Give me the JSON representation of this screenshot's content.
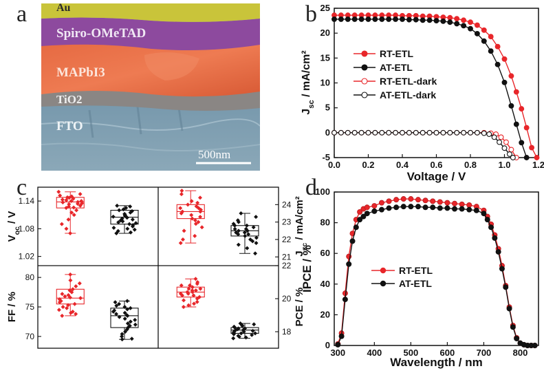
{
  "panels": {
    "a": "a",
    "b": "b",
    "c": "c",
    "d": "d"
  },
  "sem": {
    "layers": [
      "Au",
      "Spiro-OMeTAD",
      "MAPbI3",
      "TiO2",
      "FTO"
    ],
    "scale_bar": "500nm",
    "colors": {
      "Au": "#c9c43a",
      "Spiro": "#8d4a9e",
      "MAPbI3": "#e2653e",
      "TiO2": "#8a8684",
      "FTO": "#7c9bb0"
    }
  },
  "chart_data": [
    {
      "id": "b",
      "type": "line",
      "xlabel": "Voltage / V",
      "ylabel": "J_sc / mA/cm²",
      "xlim": [
        0,
        1.2
      ],
      "ylim": [
        -5,
        25
      ],
      "xticks": [
        "0.0",
        "0.2",
        "0.4",
        "0.6",
        "0.8",
        "1.0",
        "1.2"
      ],
      "yticks": [
        "-5",
        "0",
        "5",
        "10",
        "15",
        "20",
        "25"
      ],
      "legend_position": "center-left",
      "series": [
        {
          "name": "RT-ETL",
          "color": "#e8262a",
          "marker": "filled",
          "x": [
            0,
            0.04,
            0.08,
            0.12,
            0.16,
            0.2,
            0.24,
            0.28,
            0.32,
            0.36,
            0.4,
            0.44,
            0.48,
            0.52,
            0.56,
            0.6,
            0.64,
            0.68,
            0.72,
            0.76,
            0.8,
            0.84,
            0.88,
            0.92,
            0.96,
            1.0,
            1.04,
            1.07,
            1.1,
            1.13,
            1.16,
            1.19
          ],
          "y": [
            23.6,
            23.6,
            23.6,
            23.6,
            23.6,
            23.6,
            23.6,
            23.6,
            23.6,
            23.6,
            23.5,
            23.5,
            23.5,
            23.4,
            23.4,
            23.3,
            23.2,
            23.1,
            22.9,
            22.6,
            22.2,
            21.6,
            20.6,
            19.3,
            17.3,
            14.8,
            11.4,
            8.2,
            4.8,
            1.0,
            -3.0,
            -5.0
          ]
        },
        {
          "name": "AT-ETL",
          "color": "#111111",
          "marker": "filled",
          "x": [
            0,
            0.04,
            0.08,
            0.12,
            0.16,
            0.2,
            0.24,
            0.28,
            0.32,
            0.36,
            0.4,
            0.44,
            0.48,
            0.52,
            0.56,
            0.6,
            0.64,
            0.68,
            0.72,
            0.76,
            0.8,
            0.84,
            0.88,
            0.92,
            0.96,
            1.0,
            1.04,
            1.07,
            1.1,
            1.13
          ],
          "y": [
            22.8,
            22.8,
            22.8,
            22.8,
            22.8,
            22.8,
            22.8,
            22.8,
            22.8,
            22.8,
            22.8,
            22.7,
            22.7,
            22.6,
            22.6,
            22.5,
            22.4,
            22.2,
            21.9,
            21.5,
            20.9,
            19.9,
            18.4,
            16.4,
            13.7,
            10.1,
            5.4,
            1.7,
            -2.0,
            -5.0
          ]
        },
        {
          "name": "RT-ETL-dark",
          "color": "#e8262a",
          "marker": "open",
          "x": [
            0,
            0.04,
            0.08,
            0.12,
            0.16,
            0.2,
            0.24,
            0.28,
            0.32,
            0.36,
            0.4,
            0.44,
            0.48,
            0.52,
            0.56,
            0.6,
            0.64,
            0.68,
            0.72,
            0.76,
            0.8,
            0.84,
            0.88,
            0.92,
            0.95,
            0.98,
            1.01,
            1.04,
            1.07
          ],
          "y": [
            0,
            0,
            0,
            0,
            0,
            0,
            0,
            0,
            0,
            0,
            0,
            0,
            0,
            0,
            0,
            0,
            0,
            0,
            0,
            0,
            0,
            0,
            0,
            -0.1,
            -0.3,
            -0.9,
            -1.9,
            -3.4,
            -5.0
          ]
        },
        {
          "name": "AT-ETL-dark",
          "color": "#111111",
          "marker": "open",
          "x": [
            0,
            0.04,
            0.08,
            0.12,
            0.16,
            0.2,
            0.24,
            0.28,
            0.32,
            0.36,
            0.4,
            0.44,
            0.48,
            0.52,
            0.56,
            0.6,
            0.64,
            0.68,
            0.72,
            0.76,
            0.8,
            0.84,
            0.88,
            0.91,
            0.94,
            0.97,
            1.0,
            1.03,
            1.05
          ],
          "y": [
            0,
            0,
            0,
            0,
            0,
            0,
            0,
            0,
            0,
            0,
            0,
            0,
            0,
            0,
            0,
            0,
            0,
            0,
            0,
            0,
            0,
            0,
            -0.1,
            -0.3,
            -0.9,
            -1.9,
            -3.1,
            -4.3,
            -5.0
          ]
        }
      ]
    },
    {
      "id": "c",
      "type": "box",
      "subplots": [
        {
          "name": "Voc",
          "ylabel": "V_oc / V",
          "ylim": [
            1.0,
            1.17
          ],
          "yticks": [
            "1.02",
            "1.08",
            "1.14"
          ],
          "axis_side": "left",
          "boxes": [
            {
              "group": "RT-ETL",
              "color": "#e8262a",
              "min": 1.07,
              "q1": 1.125,
              "median": 1.138,
              "q3": 1.148,
              "max": 1.16,
              "points": [
                1.16,
                1.155,
                1.152,
                1.15,
                1.148,
                1.147,
                1.145,
                1.143,
                1.142,
                1.14,
                1.14,
                1.138,
                1.137,
                1.135,
                1.134,
                1.133,
                1.13,
                1.128,
                1.126,
                1.125,
                1.12,
                1.115,
                1.11,
                1.1,
                1.09,
                1.08,
                1.07
              ]
            },
            {
              "group": "AT-ETL",
              "color": "#111111",
              "min": 1.07,
              "q1": 1.09,
              "median": 1.105,
              "q3": 1.12,
              "max": 1.13,
              "points": [
                1.13,
                1.128,
                1.125,
                1.122,
                1.12,
                1.118,
                1.115,
                1.112,
                1.11,
                1.108,
                1.106,
                1.105,
                1.104,
                1.102,
                1.1,
                1.098,
                1.096,
                1.094,
                1.092,
                1.09,
                1.088,
                1.085,
                1.082,
                1.08,
                1.078,
                1.075,
                1.072,
                1.07
              ]
            }
          ]
        },
        {
          "name": "Jsc",
          "ylabel": "J_sc / mA/cm²",
          "ylim": [
            20.5,
            25
          ],
          "yticks": [
            "21",
            "22",
            "23",
            "24"
          ],
          "axis_side": "right",
          "boxes": [
            {
              "group": "RT-ETL",
              "color": "#e8262a",
              "min": 21.8,
              "q1": 23.2,
              "median": 23.6,
              "q3": 24.0,
              "max": 24.8,
              "points": [
                24.8,
                24.6,
                24.4,
                24.2,
                24.1,
                24.0,
                23.9,
                23.8,
                23.8,
                23.7,
                23.6,
                23.6,
                23.5,
                23.4,
                23.3,
                23.2,
                23.1,
                23.0,
                22.9,
                22.7,
                22.5,
                22.2,
                22.0,
                21.8
              ]
            },
            {
              "group": "AT-ETL",
              "color": "#111111",
              "min": 21.2,
              "q1": 22.2,
              "median": 22.5,
              "q3": 22.8,
              "max": 23.5,
              "points": [
                23.5,
                23.3,
                23.1,
                23.0,
                22.9,
                22.8,
                22.8,
                22.7,
                22.6,
                22.6,
                22.5,
                22.5,
                22.4,
                22.4,
                22.3,
                22.3,
                22.2,
                22.1,
                22.0,
                21.9,
                21.8,
                21.7,
                21.5,
                21.2
              ]
            }
          ]
        },
        {
          "name": "FF",
          "ylabel": "FF / %",
          "ylim": [
            68,
            82
          ],
          "yticks": [
            "70",
            "75",
            "80"
          ],
          "axis_side": "left",
          "boxes": [
            {
              "group": "RT-ETL",
              "color": "#e8262a",
              "min": 73.5,
              "q1": 75.5,
              "median": 76.5,
              "q3": 78.0,
              "max": 80.5,
              "points": [
                80.5,
                79.5,
                79.0,
                78.5,
                78.0,
                77.8,
                77.5,
                77.2,
                77.0,
                76.8,
                76.6,
                76.5,
                76.3,
                76.0,
                75.8,
                75.5,
                75.3,
                75.0,
                74.8,
                74.5,
                74.2,
                74.0,
                73.8,
                73.5
              ]
            },
            {
              "group": "AT-ETL",
              "color": "#111111",
              "min": 69.5,
              "q1": 71.5,
              "median": 73.5,
              "q3": 74.8,
              "max": 76.0,
              "points": [
                76.0,
                75.8,
                75.5,
                75.2,
                75.0,
                74.8,
                74.6,
                74.4,
                74.2,
                74.0,
                73.8,
                73.6,
                73.5,
                73.3,
                73.0,
                72.8,
                72.5,
                72.2,
                72.0,
                71.8,
                71.5,
                71.2,
                70.8,
                70.4,
                70.0,
                69.6,
                69.5
              ]
            }
          ]
        },
        {
          "name": "PCE",
          "ylabel": "PCE / %",
          "ylim": [
            17,
            22
          ],
          "yticks": [
            "18",
            "20",
            "22"
          ],
          "axis_side": "right",
          "boxes": [
            {
              "group": "RT-ETL",
              "color": "#e8262a",
              "min": 19.5,
              "q1": 20.1,
              "median": 20.4,
              "q3": 20.7,
              "max": 21.2,
              "points": [
                21.2,
                21.0,
                20.9,
                20.8,
                20.8,
                20.7,
                20.6,
                20.6,
                20.5,
                20.5,
                20.4,
                20.4,
                20.3,
                20.3,
                20.2,
                20.2,
                20.1,
                20.0,
                19.9,
                19.8,
                19.7,
                19.6,
                19.5
              ]
            },
            {
              "group": "AT-ETL",
              "color": "#111111",
              "min": 17.6,
              "q1": 17.9,
              "median": 18.1,
              "q3": 18.25,
              "max": 18.5,
              "points": [
                18.5,
                18.45,
                18.4,
                18.35,
                18.3,
                18.25,
                18.2,
                18.2,
                18.15,
                18.1,
                18.1,
                18.05,
                18.0,
                18.0,
                17.95,
                17.9,
                17.9,
                17.85,
                17.8,
                17.75,
                17.7,
                17.65,
                17.6
              ]
            }
          ]
        }
      ]
    },
    {
      "id": "d",
      "type": "line",
      "xlabel": "Wavelength / nm",
      "ylabel": "IPCE / %",
      "xlim": [
        290,
        850
      ],
      "ylim": [
        0,
        100
      ],
      "xticks": [
        "300",
        "400",
        "500",
        "600",
        "700",
        "800"
      ],
      "yticks": [
        "0",
        "20",
        "40",
        "60",
        "80",
        "100"
      ],
      "legend_position": "center-left",
      "series": [
        {
          "name": "RT-ETL",
          "color": "#e8262a",
          "marker": "filled",
          "x": [
            300,
            310,
            320,
            330,
            340,
            350,
            360,
            370,
            380,
            400,
            420,
            440,
            460,
            480,
            500,
            520,
            540,
            560,
            580,
            600,
            620,
            640,
            660,
            680,
            700,
            710,
            720,
            730,
            740,
            750,
            760,
            770,
            780,
            790,
            800,
            810,
            820,
            830,
            840
          ],
          "y": [
            1,
            8,
            34,
            58,
            73,
            82,
            87,
            89,
            90,
            91,
            93,
            94,
            95,
            95.5,
            95.5,
            95,
            94.5,
            94,
            93.5,
            93,
            92.5,
            92,
            91.5,
            90.5,
            88,
            84,
            79,
            72,
            63,
            52,
            39,
            25,
            13,
            5,
            1.5,
            0.5,
            0,
            0,
            0
          ]
        },
        {
          "name": "AT-ETL",
          "color": "#111111",
          "marker": "filled",
          "x": [
            300,
            310,
            320,
            330,
            340,
            350,
            360,
            370,
            380,
            400,
            420,
            440,
            460,
            480,
            500,
            520,
            540,
            560,
            580,
            600,
            620,
            640,
            660,
            680,
            700,
            710,
            720,
            730,
            740,
            750,
            760,
            770,
            780,
            790,
            800,
            810,
            820,
            830,
            840
          ],
          "y": [
            0.5,
            6,
            30,
            53,
            68,
            77,
            82,
            84,
            86,
            87.5,
            88.5,
            89.5,
            90,
            90.5,
            90.5,
            90.5,
            90,
            90,
            89.5,
            89.5,
            89,
            89,
            88.5,
            88,
            86,
            82,
            77,
            70,
            61,
            50,
            38,
            24,
            12,
            4.5,
            1.5,
            0.5,
            0,
            0,
            0
          ]
        }
      ]
    }
  ]
}
